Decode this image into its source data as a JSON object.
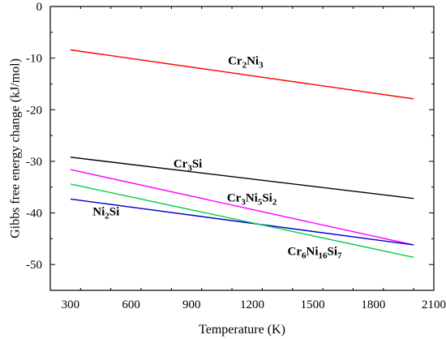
{
  "chart_data": {
    "type": "line",
    "xlabel": "Temperature (K)",
    "ylabel": "Gibbs free energy change (kJ/mol)",
    "xlim": [
      200,
      2100
    ],
    "ylim": [
      -55,
      0
    ],
    "xticks": [
      300,
      600,
      900,
      1200,
      1500,
      1800,
      2100
    ],
    "yticks": [
      0,
      -10,
      -20,
      -30,
      -40,
      -50
    ],
    "grid": false,
    "series": [
      {
        "name": "Cr2Ni3",
        "label_parts": [
          [
            "Cr",
            false
          ],
          [
            "2",
            true
          ],
          [
            "Ni",
            false
          ],
          [
            "3",
            true
          ]
        ],
        "color": "#ff0000",
        "x": [
          300,
          2000
        ],
        "y": [
          -8.4,
          -17.9
        ],
        "label_anchor": [
          1080,
          -11.2
        ]
      },
      {
        "name": "Cr3Si",
        "label_parts": [
          [
            "Cr",
            false
          ],
          [
            "3",
            true
          ],
          [
            "Si",
            false
          ]
        ],
        "color": "#000000",
        "x": [
          300,
          2000
        ],
        "y": [
          -29.2,
          -37.2
        ],
        "label_anchor": [
          810,
          -31.2
        ]
      },
      {
        "name": "Cr3Ni5Si2",
        "label_parts": [
          [
            "Cr",
            false
          ],
          [
            "3",
            true
          ],
          [
            "Ni",
            false
          ],
          [
            "5",
            true
          ],
          [
            "Si",
            false
          ],
          [
            "2",
            true
          ]
        ],
        "color": "#ff00ff",
        "x": [
          300,
          2000
        ],
        "y": [
          -31.6,
          -46.2
        ],
        "label_anchor": [
          1075,
          -37.8
        ]
      },
      {
        "name": "Ni2Si",
        "label_parts": [
          [
            "Ni",
            false
          ],
          [
            "2",
            true
          ],
          [
            "Si",
            false
          ]
        ],
        "color": "#0000cc",
        "x": [
          300,
          2000
        ],
        "y": [
          -37.3,
          -46.2
        ],
        "label_anchor": [
          410,
          -40.5
        ]
      },
      {
        "name": "Cr6Ni16Si7",
        "label_parts": [
          [
            "Cr",
            false
          ],
          [
            "6",
            true
          ],
          [
            "Ni",
            false
          ],
          [
            "16",
            true
          ],
          [
            "Si",
            false
          ],
          [
            "7",
            true
          ]
        ],
        "color": "#00cc44",
        "x": [
          300,
          2000
        ],
        "y": [
          -34.4,
          -48.6
        ],
        "label_anchor": [
          1375,
          -48.2
        ]
      }
    ]
  }
}
